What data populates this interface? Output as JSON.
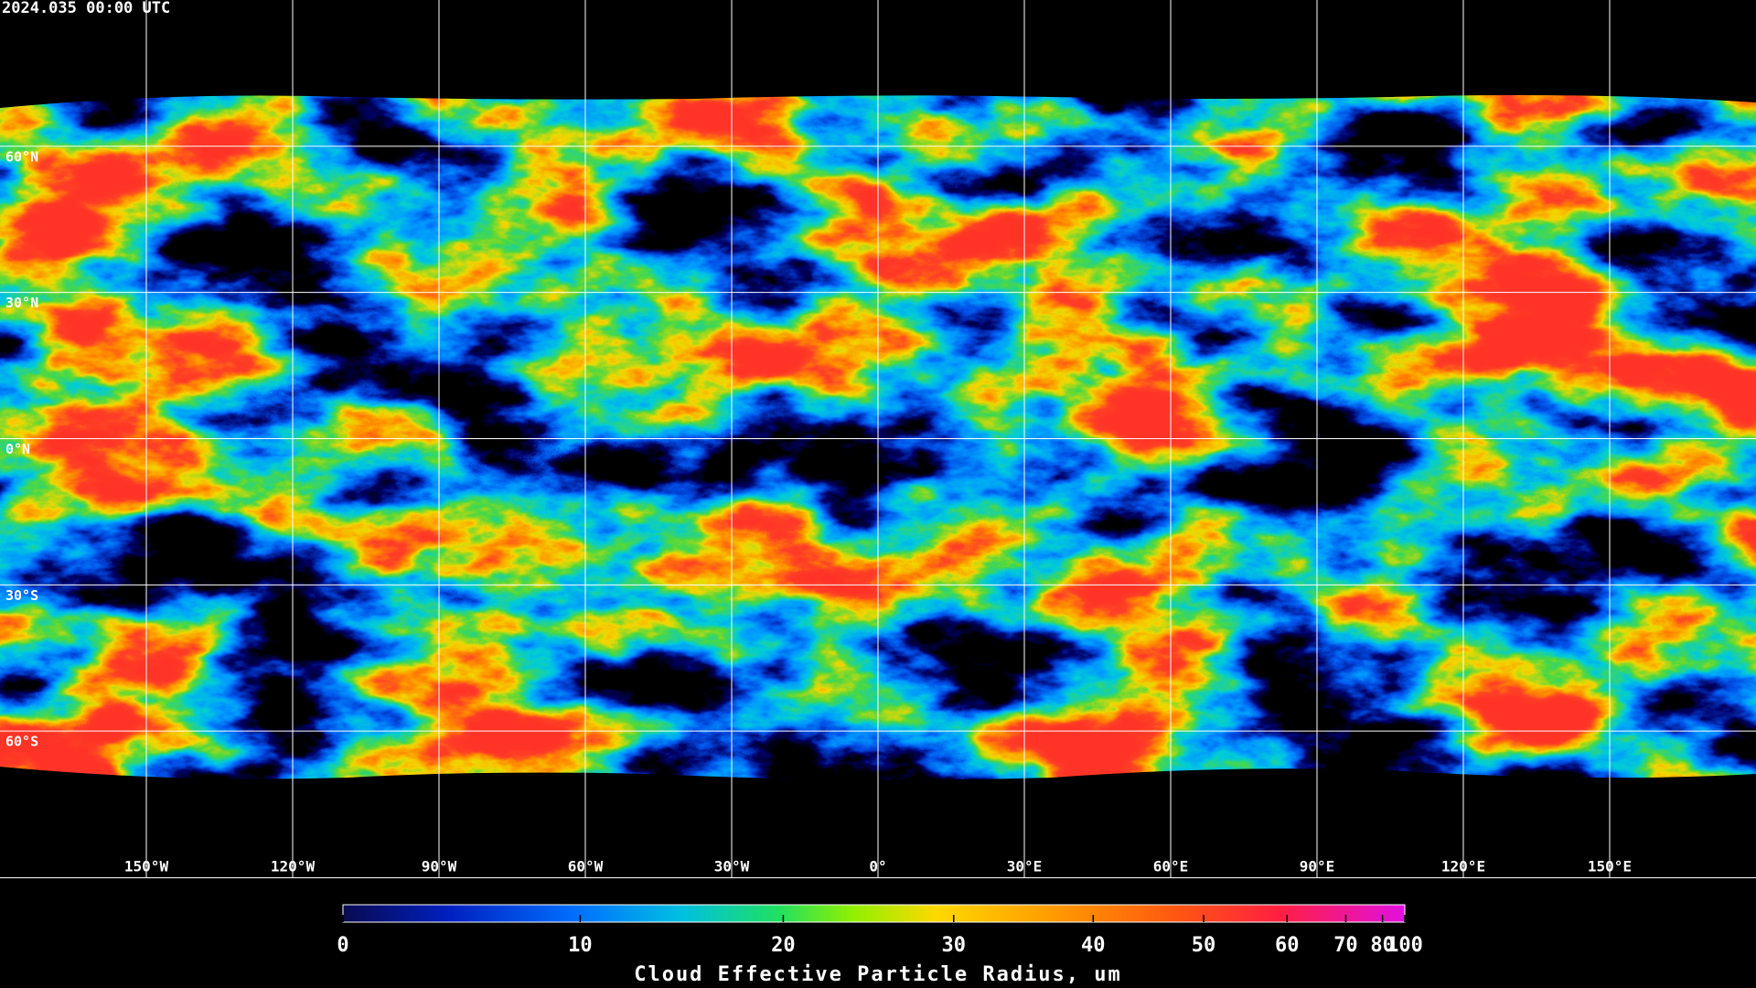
{
  "header": {
    "timestamp": "2024.035 00:00 UTC"
  },
  "map": {
    "lat_labels": [
      "60°N",
      "30°N",
      "0°N",
      "30°S",
      "60°S"
    ],
    "lon_labels": [
      "150°W",
      "120°W",
      "90°W",
      "60°W",
      "30°W",
      "0°",
      "30°E",
      "60°E",
      "90°E",
      "120°E",
      "150°E"
    ]
  },
  "colorbar": {
    "label": "Cloud Effective Particle Radius, um",
    "ticks": [
      0,
      10,
      20,
      30,
      40,
      50,
      60,
      70,
      80,
      100
    ],
    "lim": [
      0,
      100
    ]
  }
}
